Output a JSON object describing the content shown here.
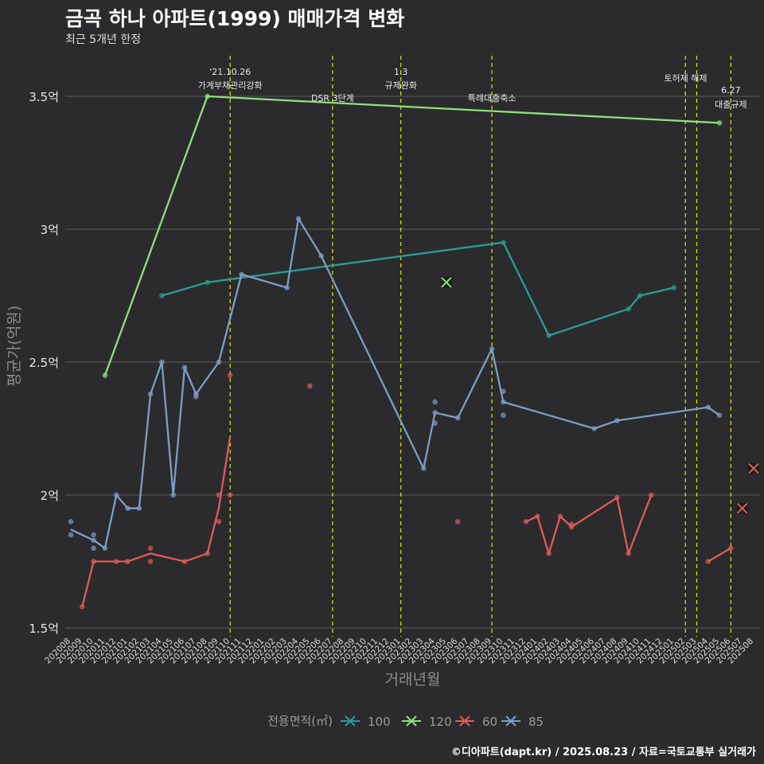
{
  "title": "금곡 하나 아파트(1999) 매매가격 변화",
  "subtitle": "최근 5개년 한정",
  "footer": "©디아파트(dapt.kr) / 2025.08.23 / 자료=국토교통부 실거래가",
  "colors": {
    "s100": "#2a9d8f",
    "s120": "#8ee07a",
    "s60": "#e05a5a",
    "s85": "#7d9dc5",
    "event": "#e6e600",
    "grid": "#5d5d5d"
  },
  "chart_data": {
    "type": "line",
    "title": "금곡 하나 아파트(1999) 매매가격 변화",
    "xlabel": "거래년월",
    "ylabel": "평균가(억원)",
    "ylim": [
      1.5,
      3.6
    ],
    "yticks": [
      {
        "v": 1.5,
        "label": "1.5억"
      },
      {
        "v": 2,
        "label": "2억"
      },
      {
        "v": 2.5,
        "label": "2.5억"
      },
      {
        "v": 3,
        "label": "3억"
      },
      {
        "v": 3.5,
        "label": "3.5억"
      }
    ],
    "categories": [
      "202008",
      "202009",
      "202010",
      "202011",
      "202012",
      "202101",
      "202102",
      "202103",
      "202104",
      "202105",
      "202106",
      "202107",
      "202108",
      "202109",
      "202110",
      "202111",
      "202112",
      "202201",
      "202202",
      "202203",
      "202204",
      "202205",
      "202206",
      "202207",
      "202208",
      "202209",
      "202210",
      "202211",
      "202212",
      "202301",
      "202302",
      "202303",
      "202304",
      "202305",
      "202306",
      "202307",
      "202308",
      "202309",
      "202310",
      "202311",
      "202312",
      "202401",
      "202402",
      "202403",
      "202404",
      "202405",
      "202406",
      "202407",
      "202408",
      "202409",
      "202410",
      "202411",
      "202412",
      "202501",
      "202502",
      "202503",
      "202504",
      "202505",
      "202506",
      "202507",
      "202508"
    ],
    "legend_title": "전용면적(㎡)",
    "series": [
      {
        "name": "100",
        "key": "s100",
        "line": [
          [
            8,
            2.75
          ],
          [
            12,
            2.8
          ],
          [
            38,
            2.95
          ],
          [
            42,
            2.6
          ],
          [
            49,
            2.7
          ],
          [
            50,
            2.75
          ],
          [
            53,
            2.78
          ]
        ],
        "points": [
          [
            8,
            2.75
          ],
          [
            12,
            2.8
          ],
          [
            38,
            2.95
          ],
          [
            42,
            2.6
          ],
          [
            49,
            2.7
          ],
          [
            50,
            2.75
          ],
          [
            53,
            2.78
          ]
        ],
        "current": []
      },
      {
        "name": "120",
        "key": "s120",
        "line": [
          [
            3,
            2.45
          ],
          [
            12,
            3.5
          ],
          [
            57,
            3.4
          ]
        ],
        "points": [
          [
            3,
            2.45
          ],
          [
            12,
            3.5
          ],
          [
            57,
            3.4
          ]
        ],
        "current": [
          [
            33,
            2.8
          ]
        ]
      },
      {
        "name": "60",
        "key": "s60",
        "line": [
          [
            1,
            1.58
          ],
          [
            2,
            1.75
          ],
          [
            4,
            1.75
          ],
          [
            5,
            1.75
          ],
          [
            7,
            1.78
          ],
          [
            10,
            1.75
          ],
          [
            12,
            1.78
          ],
          [
            13,
            1.95
          ],
          [
            14,
            2.22
          ]
        ],
        "line2": [
          [
            40,
            1.9
          ],
          [
            41,
            1.92
          ],
          [
            42,
            1.78
          ],
          [
            43,
            1.92
          ],
          [
            44,
            1.88
          ],
          [
            48,
            1.99
          ],
          [
            49,
            1.78
          ],
          [
            51,
            2.0
          ]
        ],
        "line3": [
          [
            56,
            1.75
          ],
          [
            58,
            1.8
          ]
        ],
        "points": [
          [
            1,
            1.58
          ],
          [
            2,
            1.75
          ],
          [
            4,
            1.75
          ],
          [
            5,
            1.75
          ],
          [
            7,
            1.8
          ],
          [
            7,
            1.75
          ],
          [
            10,
            1.75
          ],
          [
            12,
            1.78
          ],
          [
            13,
            1.9
          ],
          [
            13,
            2.0
          ],
          [
            14,
            2.0
          ],
          [
            14,
            2.45
          ],
          [
            21,
            2.41
          ],
          [
            34,
            1.9
          ],
          [
            40,
            1.9
          ],
          [
            41,
            1.92
          ],
          [
            42,
            1.78
          ],
          [
            43,
            1.92
          ],
          [
            44,
            1.89
          ],
          [
            44,
            1.88
          ],
          [
            48,
            1.99
          ],
          [
            49,
            1.78
          ],
          [
            51,
            2.0
          ],
          [
            56,
            1.75
          ],
          [
            58,
            1.8
          ]
        ],
        "current": [
          [
            59,
            1.95
          ],
          [
            60,
            2.1
          ]
        ]
      },
      {
        "name": "85",
        "key": "s85",
        "line": [
          [
            0,
            1.87
          ],
          [
            2,
            1.83
          ],
          [
            3,
            1.8
          ],
          [
            4,
            2.0
          ],
          [
            5,
            1.95
          ],
          [
            6,
            1.95
          ],
          [
            7,
            2.38
          ],
          [
            8,
            2.5
          ],
          [
            9,
            2.0
          ],
          [
            10,
            2.48
          ],
          [
            11,
            2.38
          ],
          [
            13,
            2.5
          ],
          [
            15,
            2.83
          ],
          [
            19,
            2.78
          ],
          [
            20,
            3.04
          ],
          [
            22,
            2.9
          ],
          [
            31,
            2.1
          ],
          [
            32,
            2.31
          ],
          [
            34,
            2.29
          ],
          [
            37,
            2.55
          ],
          [
            38,
            2.35
          ],
          [
            46,
            2.25
          ],
          [
            48,
            2.28
          ],
          [
            56,
            2.33
          ],
          [
            57,
            2.3
          ]
        ],
        "points": [
          [
            0,
            1.9
          ],
          [
            0,
            1.85
          ],
          [
            2,
            1.85
          ],
          [
            2,
            1.83
          ],
          [
            2,
            1.8
          ],
          [
            3,
            1.8
          ],
          [
            4,
            2.0
          ],
          [
            5,
            1.95
          ],
          [
            6,
            1.95
          ],
          [
            7,
            2.38
          ],
          [
            8,
            2.5
          ],
          [
            9,
            2.0
          ],
          [
            10,
            2.48
          ],
          [
            11,
            2.38
          ],
          [
            11,
            2.37
          ],
          [
            13,
            2.5
          ],
          [
            15,
            2.83
          ],
          [
            19,
            2.78
          ],
          [
            20,
            3.04
          ],
          [
            22,
            2.9
          ],
          [
            31,
            2.1
          ],
          [
            32,
            2.35
          ],
          [
            32,
            2.27
          ],
          [
            32,
            2.31
          ],
          [
            34,
            2.29
          ],
          [
            37,
            2.55
          ],
          [
            38,
            2.39
          ],
          [
            38,
            2.3
          ],
          [
            38,
            2.35
          ],
          [
            46,
            2.25
          ],
          [
            48,
            2.28
          ],
          [
            56,
            2.33
          ],
          [
            57,
            2.3
          ]
        ],
        "current": []
      }
    ],
    "events": [
      {
        "x": 14,
        "label_top": "'21.10.26",
        "label_bottom": "가계부채관리강화"
      },
      {
        "x": 23,
        "label_top": "",
        "label_bottom": "DSR 3단계"
      },
      {
        "x": 29,
        "label_top": "1.3",
        "label_bottom": "규제완화"
      },
      {
        "x": 37,
        "label_top": "",
        "label_bottom": "특례대출축소"
      },
      {
        "x": 54,
        "label_top": "",
        "label_bottom": ""
      },
      {
        "x": 55,
        "label_top": "토허제 해제",
        "label_bottom": ""
      },
      {
        "x": 58,
        "label_top": "6.27",
        "label_bottom": "대출규제"
      }
    ]
  }
}
